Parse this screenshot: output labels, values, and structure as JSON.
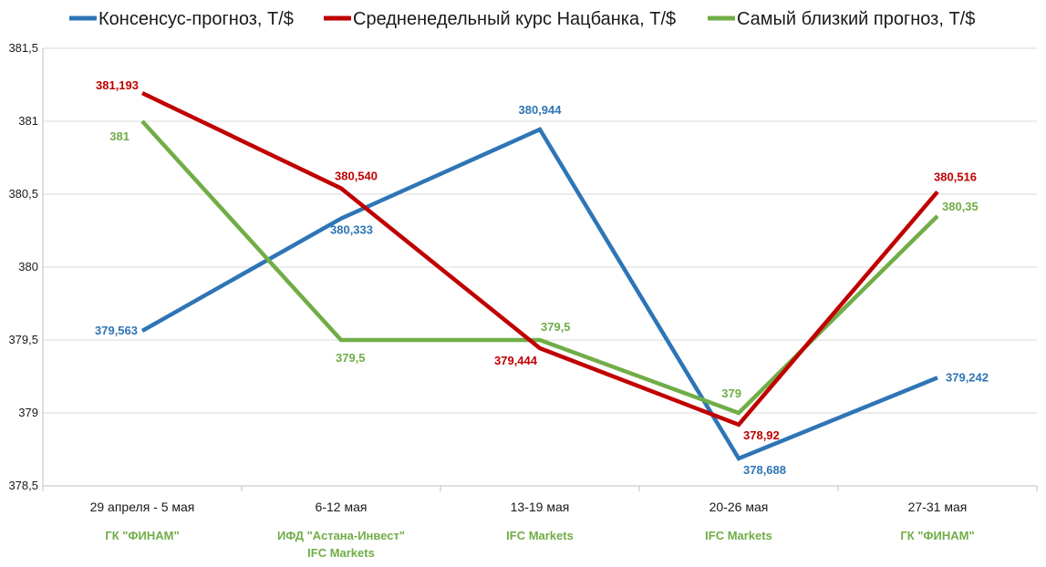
{
  "chart_data": {
    "type": "line",
    "categories": [
      "29 апреля - 5 мая",
      "6-12 мая",
      "13-19 мая",
      "20-26 мая",
      "27-31 мая"
    ],
    "sources": [
      [
        "ГК \"ФИНАМ\""
      ],
      [
        "ИФД \"Астана-Инвест\"",
        "IFC Markets"
      ],
      [
        "IFC Markets"
      ],
      [
        "IFC Markets"
      ],
      [
        "ГК \"ФИНАМ\""
      ]
    ],
    "ylim": [
      378.5,
      381.5
    ],
    "yticks": [
      378.5,
      379,
      379.5,
      380,
      380.5,
      381,
      381.5
    ],
    "ytick_labels": [
      "378,5",
      "379",
      "379,5",
      "380",
      "380,5",
      "381",
      "381,5"
    ],
    "grid": true,
    "legend": "top",
    "colors": {
      "source_text": "#70ad47"
    },
    "series": [
      {
        "name": "Консенсус-прогноз, Т/$",
        "color": "#2e75b6",
        "values": [
          379.563,
          380.333,
          380.944,
          378.688,
          379.242
        ],
        "labels": [
          "379,563",
          "380,333",
          "380,944",
          "378,688",
          "379,242"
        ]
      },
      {
        "name": "Средненедельный курс Нацбанка, Т/$",
        "color": "#c00000",
        "values": [
          381.193,
          380.54,
          379.444,
          378.92,
          380.516
        ],
        "labels": [
          "381,193",
          "380,540",
          "379,444",
          "378,92",
          "380,516"
        ]
      },
      {
        "name": "Самый близкий прогноз, Т/$",
        "color": "#70ad47",
        "values": [
          381,
          379.5,
          379.5,
          379,
          380.35
        ],
        "labels": [
          "381",
          "379,5",
          "379,5",
          "379",
          "380,35"
        ]
      }
    ]
  }
}
